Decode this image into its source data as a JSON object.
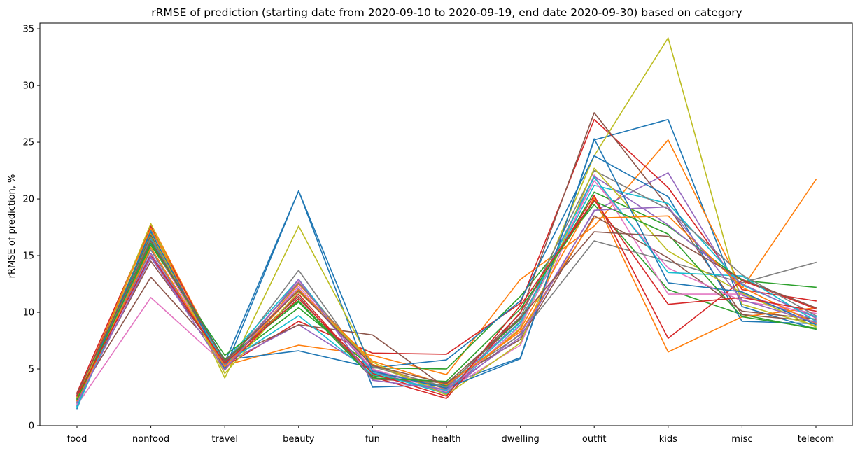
{
  "chart_data": {
    "type": "line",
    "title": "rRMSE of prediction (starting date from 2020-09-10 to 2020-09-19, end date 2020-09-30) based on category",
    "xlabel": "",
    "ylabel": "rRMSE of prediction, %",
    "categories": [
      "food",
      "nonfood",
      "travel",
      "beauty",
      "fun",
      "health",
      "dwelling",
      "outfit",
      "kids",
      "misc",
      "telecom"
    ],
    "ylim": [
      0,
      35.5
    ],
    "yticks": [
      0,
      5,
      10,
      15,
      20,
      25,
      30,
      35
    ],
    "grid": false,
    "legend": "none",
    "series": [
      {
        "color": "#1f77b4",
        "values": [
          1.5,
          17.3,
          5.6,
          20.7,
          3.4,
          3.6,
          6.0,
          25.2,
          27.0,
          10.5,
          8.5
        ]
      },
      {
        "color": "#ff7f0e",
        "values": [
          2.0,
          17.8,
          5.3,
          7.1,
          6.2,
          4.5,
          12.9,
          17.6,
          25.2,
          12.1,
          21.7
        ]
      },
      {
        "color": "#2ca02c",
        "values": [
          2.4,
          16.8,
          5.5,
          10.4,
          5.1,
          5.0,
          11.4,
          19.5,
          12.0,
          9.8,
          8.5
        ]
      },
      {
        "color": "#d62728",
        "values": [
          2.9,
          17.6,
          5.2,
          9.2,
          6.4,
          6.3,
          10.8,
          27.0,
          21.0,
          12.0,
          11.0
        ]
      },
      {
        "color": "#9467bd",
        "values": [
          2.2,
          14.8,
          5.5,
          8.9,
          4.8,
          2.9,
          8.1,
          18.9,
          22.3,
          11.5,
          9.3
        ]
      },
      {
        "color": "#8c564b",
        "values": [
          2.5,
          13.1,
          5.9,
          8.9,
          8.0,
          3.3,
          9.9,
          27.6,
          19.3,
          9.8,
          9.2
        ]
      },
      {
        "color": "#e377c2",
        "values": [
          1.8,
          11.3,
          5.4,
          12.7,
          4.9,
          3.1,
          7.1,
          22.1,
          11.6,
          11.6,
          9.6
        ]
      },
      {
        "color": "#7f7f7f",
        "values": [
          2.1,
          15.5,
          5.1,
          13.7,
          4.6,
          3.7,
          8.0,
          16.3,
          14.5,
          12.6,
          14.4
        ]
      },
      {
        "color": "#bcbd22",
        "values": [
          2.2,
          17.8,
          4.2,
          17.6,
          5.3,
          3.0,
          8.6,
          23.8,
          34.2,
          10.7,
          8.8
        ]
      },
      {
        "color": "#17becf",
        "values": [
          1.7,
          16.0,
          5.7,
          12.9,
          4.7,
          2.8,
          8.9,
          21.2,
          19.6,
          12.4,
          9.6
        ]
      },
      {
        "color": "#1f77b4",
        "values": [
          1.8,
          16.5,
          5.8,
          6.6,
          5.1,
          5.8,
          11.0,
          23.8,
          20.2,
          9.2,
          9.0
        ]
      },
      {
        "color": "#ff7f0e",
        "values": [
          2.6,
          17.4,
          4.9,
          12.5,
          5.4,
          3.2,
          8.5,
          20.1,
          6.5,
          9.6,
          10.4
        ]
      },
      {
        "color": "#2ca02c",
        "values": [
          2.0,
          15.9,
          6.2,
          11.0,
          4.4,
          3.5,
          9.4,
          20.6,
          17.6,
          12.8,
          12.2
        ]
      },
      {
        "color": "#d62728",
        "values": [
          2.7,
          16.9,
          5.0,
          11.6,
          4.3,
          2.4,
          10.0,
          20.3,
          7.7,
          12.8,
          10.3
        ]
      },
      {
        "color": "#9467bd",
        "values": [
          2.3,
          15.2,
          5.3,
          12.1,
          4.9,
          3.3,
          9.2,
          22.0,
          17.7,
          12.5,
          9.5
        ]
      },
      {
        "color": "#8c564b",
        "values": [
          2.4,
          14.5,
          5.6,
          11.4,
          4.1,
          3.8,
          7.6,
          18.5,
          14.8,
          10.1,
          9.4
        ]
      },
      {
        "color": "#e377c2",
        "values": [
          1.9,
          16.2,
          5.1,
          12.3,
          5.0,
          3.0,
          8.8,
          21.6,
          13.9,
          11.0,
          9.9
        ]
      },
      {
        "color": "#7f7f7f",
        "values": [
          2.1,
          16.6,
          5.4,
          12.6,
          5.2,
          3.4,
          9.6,
          22.5,
          19.1,
          13.3,
          9.7
        ]
      },
      {
        "color": "#bcbd22",
        "values": [
          2.5,
          17.0,
          4.6,
          11.8,
          5.6,
          2.7,
          7.3,
          22.7,
          15.4,
          11.7,
          8.7
        ]
      },
      {
        "color": "#17becf",
        "values": [
          1.6,
          16.4,
          5.5,
          9.7,
          4.5,
          3.1,
          9.1,
          21.9,
          13.5,
          13.2,
          9.2
        ]
      },
      {
        "color": "#1f77b4",
        "values": [
          2.0,
          17.1,
          5.0,
          20.7,
          4.8,
          3.3,
          5.9,
          25.3,
          12.6,
          11.8,
          8.9
        ]
      },
      {
        "color": "#ff7f0e",
        "values": [
          2.2,
          15.7,
          5.2,
          12.0,
          5.7,
          3.6,
          8.3,
          18.3,
          18.5,
          12.2,
          9.0
        ]
      },
      {
        "color": "#2ca02c",
        "values": [
          2.3,
          16.1,
          5.8,
          10.9,
          4.2,
          3.9,
          10.3,
          19.8,
          16.9,
          9.6,
          8.6
        ]
      },
      {
        "color": "#d62728",
        "values": [
          2.6,
          15.0,
          5.5,
          11.2,
          4.6,
          2.6,
          10.6,
          19.9,
          10.7,
          11.3,
          10.1
        ]
      },
      {
        "color": "#9467bd",
        "values": [
          2.0,
          14.9,
          4.9,
          12.9,
          4.0,
          3.2,
          7.8,
          19.0,
          19.3,
          11.1,
          9.1
        ]
      },
      {
        "color": "#8c564b",
        "values": [
          2.8,
          16.3,
          5.7,
          11.9,
          5.3,
          3.7,
          9.5,
          17.1,
          16.7,
          12.9,
          10.4
        ]
      }
    ]
  }
}
